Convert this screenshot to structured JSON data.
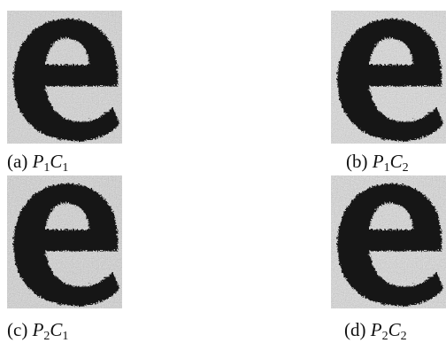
{
  "panels": [
    {
      "id": "a",
      "tag": "(a)",
      "p": "P",
      "p_sub": "1",
      "c": "C",
      "c_sub": "1"
    },
    {
      "id": "b",
      "tag": "(b)",
      "p": "P",
      "p_sub": "1",
      "c": "C",
      "c_sub": "2"
    },
    {
      "id": "c",
      "tag": "(c)",
      "p": "P",
      "p_sub": "2",
      "c": "C",
      "c_sub": "1"
    },
    {
      "id": "d",
      "tag": "(d)",
      "p": "P",
      "p_sub": "2",
      "c": "C",
      "c_sub": "2"
    }
  ],
  "colors": {
    "glyph": "#141414",
    "background_noise": "#d2d2d2"
  },
  "glyph": "e"
}
